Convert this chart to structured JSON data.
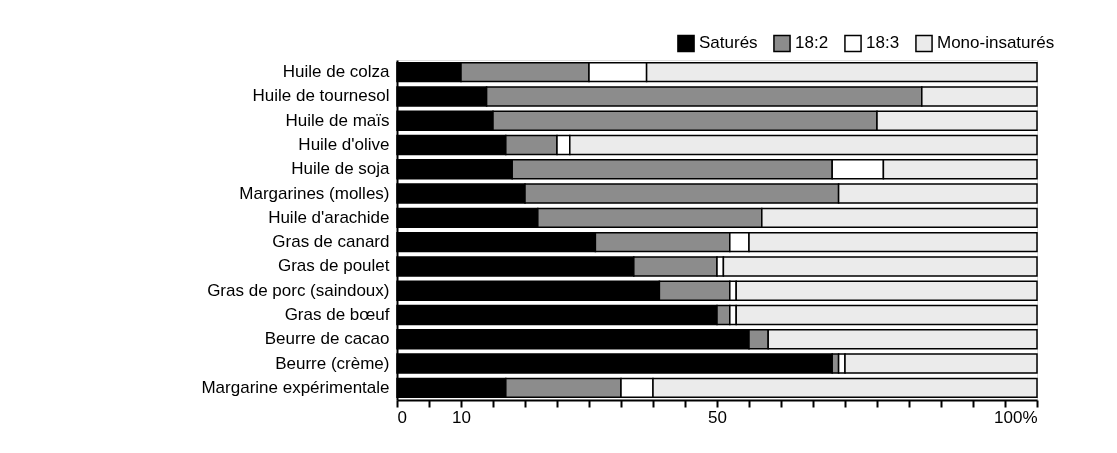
{
  "chart_data": {
    "type": "bar",
    "orientation": "horizontal",
    "stacked": true,
    "categories": [
      "Huile de colza",
      "Huile de tournesol",
      "Huile de maïs",
      "Huile d'olive",
      "Huile de soja",
      "Margarines (molles)",
      "Huile d'arachide",
      "Gras de canard",
      "Gras de poulet",
      "Gras de porc (saindoux)",
      "Gras de bœuf",
      "Beurre de cacao",
      "Beurre (crème)",
      "Margarine expérimentale"
    ],
    "series": [
      {
        "name": "Saturés",
        "color": "#000000",
        "values": [
          10,
          14,
          15,
          17,
          18,
          20,
          22,
          31,
          37,
          41,
          50,
          55,
          68,
          17
        ]
      },
      {
        "name": "18:2",
        "color": "#8c8c8c",
        "values": [
          20,
          68,
          60,
          8,
          50,
          49,
          35,
          21,
          13,
          11,
          2,
          3,
          1,
          18
        ]
      },
      {
        "name": "18:3",
        "color": "#ffffff",
        "values": [
          9,
          0,
          0,
          2,
          8,
          0,
          0,
          3,
          1,
          1,
          1,
          0,
          1,
          5
        ]
      },
      {
        "name": "Mono-insaturés",
        "color": "#ebebeb",
        "values": [
          61,
          18,
          25,
          73,
          24,
          31,
          43,
          45,
          49,
          47,
          47,
          42,
          30,
          60
        ]
      }
    ],
    "xlim": [
      0,
      100
    ],
    "xticks": [
      0,
      {
        "value": 5,
        "label": null
      },
      10,
      {
        "value": 15,
        "label": null
      },
      {
        "value": 20,
        "label": null
      },
      {
        "value": 25,
        "label": null
      },
      {
        "value": 30,
        "label": null
      },
      {
        "value": 35,
        "label": null
      },
      {
        "value": 40,
        "label": null
      },
      {
        "value": 45,
        "label": null
      },
      50,
      {
        "value": 55,
        "label": null
      },
      {
        "value": 60,
        "label": null
      },
      {
        "value": 65,
        "label": null
      },
      {
        "value": 70,
        "label": null
      },
      {
        "value": 75,
        "label": null
      },
      {
        "value": 80,
        "label": null
      },
      {
        "value": 85,
        "label": null
      },
      {
        "value": 90,
        "label": null
      },
      {
        "value": 95,
        "label": null
      },
      {
        "value": 100,
        "label": "100%"
      }
    ],
    "legend": "top right",
    "grid": false
  }
}
